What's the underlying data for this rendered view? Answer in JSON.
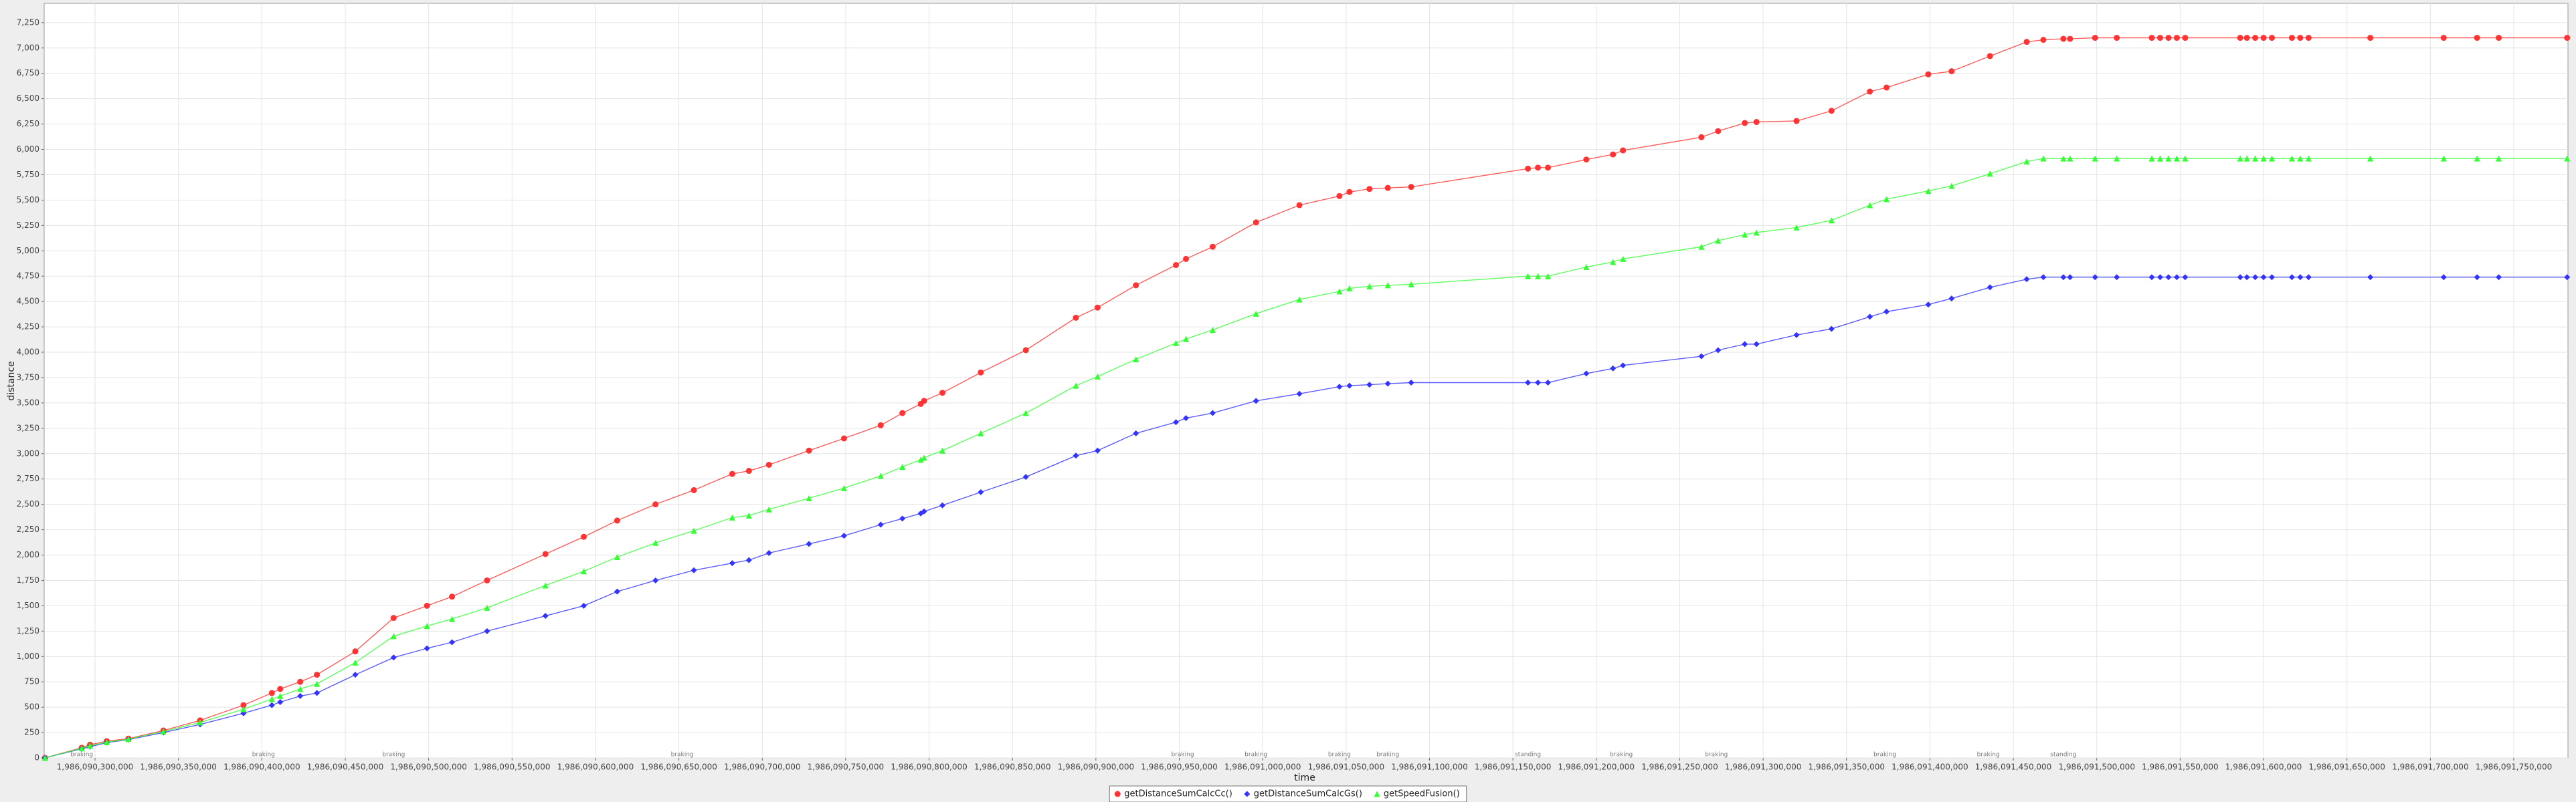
{
  "chart_data": {
    "type": "line",
    "xlabel": "time",
    "ylabel": "distance",
    "grid": true,
    "legend": "bottom",
    "x": [
      1986090270000,
      1986090292000,
      1986090297000,
      1986090307000,
      1986090320000,
      1986090341000,
      1986090363000,
      1986090389000,
      1986090406000,
      1986090411000,
      1986090423000,
      1986090433000,
      1986090456000,
      1986090479000,
      1986090499000,
      1986090514000,
      1986090535000,
      1986090570000,
      1986090593000,
      1986090613000,
      1986090636000,
      1986090659000,
      1986090682000,
      1986090692000,
      1986090704000,
      1986090728000,
      1986090749000,
      1986090771000,
      1986090784000,
      1986090795000,
      1986090797000,
      1986090808000,
      1986090831000,
      1986090858000,
      1986090888000,
      1986090901000,
      1986090924000,
      1986090948000,
      1986090954000,
      1986090970000,
      1986090996000,
      1986091022000,
      1986091046000,
      1986091052000,
      1986091064000,
      1986091075000,
      1986091089000,
      1986091159000,
      1986091165000,
      1986091171000,
      1986091194000,
      1986091210000,
      1986091216000,
      1986091263000,
      1986091273000,
      1986091289000,
      1986091296000,
      1986091320000,
      1986091341000,
      1986091364000,
      1986091374000,
      1986091399000,
      1986091413000,
      1986091436000,
      1986091458000,
      1986091468000,
      1986091480000,
      1986091484000,
      1986091499000,
      1986091512000,
      1986091533000,
      1986091538000,
      1986091543000,
      1986091548000,
      1986091553000,
      1986091586000,
      1986091590000,
      1986091595000,
      1986091600000,
      1986091605000,
      1986091617000,
      1986091622000,
      1986091627000,
      1986091664000,
      1986091708000,
      1986091728000,
      1986091741000,
      1986091782000
    ],
    "series": [
      {
        "name": "getDistanceSumCalcCc()",
        "color": "#ff3333",
        "marker": "circle",
        "values": [
          0,
          100,
          130,
          165,
          190,
          270,
          370,
          520,
          640,
          680,
          750,
          820,
          1050,
          1380,
          1500,
          1590,
          1750,
          2010,
          2180,
          2340,
          2500,
          2640,
          2800,
          2830,
          2890,
          3030,
          3150,
          3280,
          3400,
          3490,
          3520,
          3600,
          3800,
          4020,
          4340,
          4440,
          4660,
          4860,
          4920,
          5040,
          5280,
          5450,
          5540,
          5580,
          5610,
          5620,
          5630,
          5810,
          5820,
          5820,
          5900,
          5950,
          5990,
          6120,
          6180,
          6260,
          6270,
          6280,
          6380,
          6570,
          6610,
          6740,
          6770,
          6920,
          7060,
          7080,
          7090,
          7090,
          7100,
          7100,
          7100,
          7100,
          7100,
          7100,
          7100,
          7100,
          7100,
          7100,
          7100,
          7100,
          7100,
          7100,
          7100,
          7100,
          7100,
          7100,
          7100,
          7100
        ]
      },
      {
        "name": "getDistanceSumCalcGs()",
        "color": "#3333ff",
        "marker": "diamond",
        "values": [
          0,
          90,
          110,
          150,
          180,
          250,
          330,
          440,
          520,
          550,
          610,
          640,
          820,
          990,
          1080,
          1140,
          1250,
          1400,
          1500,
          1640,
          1750,
          1850,
          1920,
          1950,
          2020,
          2110,
          2190,
          2300,
          2360,
          2410,
          2430,
          2490,
          2620,
          2770,
          2980,
          3030,
          3200,
          3310,
          3350,
          3400,
          3520,
          3590,
          3660,
          3670,
          3680,
          3690,
          3700,
          3700,
          3700,
          3700,
          3790,
          3840,
          3870,
          3960,
          4020,
          4080,
          4080,
          4170,
          4230,
          4350,
          4400,
          4470,
          4530,
          4640,
          4720,
          4740,
          4740,
          4740,
          4740,
          4740,
          4740,
          4740,
          4740,
          4740,
          4740,
          4740,
          4740,
          4740,
          4740,
          4740,
          4740,
          4740,
          4740,
          4740,
          4740,
          4740,
          4740,
          4740
        ]
      },
      {
        "name": "getSpeedFusion()",
        "color": "#33ff33",
        "marker": "triangle",
        "values": [
          0,
          95,
          120,
          155,
          185,
          260,
          350,
          480,
          580,
          610,
          680,
          730,
          940,
          1200,
          1300,
          1370,
          1480,
          1700,
          1840,
          1980,
          2120,
          2240,
          2370,
          2390,
          2450,
          2560,
          2660,
          2780,
          2870,
          2940,
          2960,
          3030,
          3200,
          3400,
          3670,
          3760,
          3930,
          4090,
          4130,
          4220,
          4380,
          4520,
          4600,
          4630,
          4650,
          4660,
          4670,
          4750,
          4750,
          4750,
          4840,
          4890,
          4920,
          5040,
          5100,
          5160,
          5180,
          5230,
          5300,
          5450,
          5510,
          5590,
          5640,
          5760,
          5880,
          5910,
          5910,
          5910,
          5910,
          5910,
          5910,
          5910,
          5910,
          5910,
          5910,
          5910,
          5910,
          5910,
          5910,
          5910,
          5910,
          5910,
          5910,
          5910,
          5910,
          5910,
          5910,
          5910
        ]
      }
    ],
    "annotations": [
      {
        "text": "braking",
        "x": 1986090292000
      },
      {
        "text": "braking",
        "x": 1986090401000
      },
      {
        "text": "braking",
        "x": 1986090479000
      },
      {
        "text": "braking",
        "x": 1986090652000
      },
      {
        "text": "braking",
        "x": 1986090952000
      },
      {
        "text": "braking",
        "x": 1986090996000
      },
      {
        "text": "braking",
        "x": 1986091046000
      },
      {
        "text": "braking",
        "x": 1986091075000
      },
      {
        "text": "standing",
        "x": 1986091159000
      },
      {
        "text": "braking",
        "x": 1986091215000
      },
      {
        "text": "braking",
        "x": 1986091272000
      },
      {
        "text": "braking",
        "x": 1986091373000
      },
      {
        "text": "braking",
        "x": 1986091435000
      },
      {
        "text": "standing",
        "x": 1986091480000
      }
    ],
    "xlim": [
      1986090269500,
      1986091782500
    ],
    "xticks": [
      {
        "value": 1986090300000,
        "label": "1,986,090,300,000"
      },
      {
        "value": 1986090350000,
        "label": "1,986,090,350,000"
      },
      {
        "value": 1986090400000,
        "label": "1,986,090,400,000"
      },
      {
        "value": 1986090450000,
        "label": "1,986,090,450,000"
      },
      {
        "value": 1986090500000,
        "label": "1,986,090,500,000"
      },
      {
        "value": 1986090550000,
        "label": "1,986,090,550,000"
      },
      {
        "value": 1986090600000,
        "label": "1,986,090,600,000"
      },
      {
        "value": 1986090650000,
        "label": "1,986,090,650,000"
      },
      {
        "value": 1986090700000,
        "label": "1,986,090,700,000"
      },
      {
        "value": 1986090750000,
        "label": "1,986,090,750,000"
      },
      {
        "value": 1986090800000,
        "label": "1,986,090,800,000"
      },
      {
        "value": 1986090850000,
        "label": "1,986,090,850,000"
      },
      {
        "value": 1986090900000,
        "label": "1,986,090,900,000"
      },
      {
        "value": 1986090950000,
        "label": "1,986,090,950,000"
      },
      {
        "value": 1986091000000,
        "label": "1,986,091,000,000"
      },
      {
        "value": 1986091050000,
        "label": "1,986,091,050,000"
      },
      {
        "value": 1986091100000,
        "label": "1,986,091,100,000"
      },
      {
        "value": 1986091150000,
        "label": "1,986,091,150,000"
      },
      {
        "value": 1986091200000,
        "label": "1,986,091,200,000"
      },
      {
        "value": 1986091250000,
        "label": "1,986,091,250,000"
      },
      {
        "value": 1986091300000,
        "label": "1,986,091,300,000"
      },
      {
        "value": 1986091350000,
        "label": "1,986,091,350,000"
      },
      {
        "value": 1986091400000,
        "label": "1,986,091,400,000"
      },
      {
        "value": 1986091450000,
        "label": "1,986,091,450,000"
      },
      {
        "value": 1986091500000,
        "label": "1,986,091,500,000"
      },
      {
        "value": 1986091550000,
        "label": "1,986,091,550,000"
      },
      {
        "value": 1986091600000,
        "label": "1,986,091,600,000"
      },
      {
        "value": 1986091650000,
        "label": "1,986,091,650,000"
      },
      {
        "value": 1986091700000,
        "label": "1,986,091,700,000"
      },
      {
        "value": 1986091750000,
        "label": "1,986,091,750,000"
      }
    ],
    "ylim": [
      0,
      7440
    ],
    "yticks": [
      0,
      250,
      500,
      750,
      {
        "value": 1000,
        "label": "1,000"
      },
      {
        "value": 1250,
        "label": "1,250"
      },
      {
        "value": 1500,
        "label": "1,500"
      },
      {
        "value": 1750,
        "label": "1,750"
      },
      {
        "value": 2000,
        "label": "2,000"
      },
      {
        "value": 2250,
        "label": "2,250"
      },
      {
        "value": 2500,
        "label": "2,500"
      },
      {
        "value": 2750,
        "label": "2,750"
      },
      {
        "value": 3000,
        "label": "3,000"
      },
      {
        "value": 3250,
        "label": "3,250"
      },
      {
        "value": 3500,
        "label": "3,500"
      },
      {
        "value": 3750,
        "label": "3,750"
      },
      {
        "value": 4000,
        "label": "4,000"
      },
      {
        "value": 4250,
        "label": "4,250"
      },
      {
        "value": 4500,
        "label": "4,500"
      },
      {
        "value": 4750,
        "label": "4,750"
      },
      {
        "value": 5000,
        "label": "5,000"
      },
      {
        "value": 5250,
        "label": "5,250"
      },
      {
        "value": 5500,
        "label": "5,500"
      },
      {
        "value": 5750,
        "label": "5,750"
      },
      {
        "value": 6000,
        "label": "6,000"
      },
      {
        "value": 6250,
        "label": "6,250"
      },
      {
        "value": 6500,
        "label": "6,500"
      },
      {
        "value": 6750,
        "label": "6,750"
      },
      {
        "value": 7000,
        "label": "7,000"
      },
      {
        "value": 7250,
        "label": "7,250"
      }
    ]
  }
}
